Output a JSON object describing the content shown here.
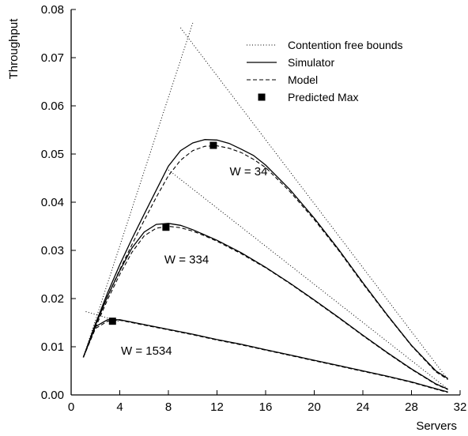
{
  "chart_data": {
    "type": "line",
    "title": "",
    "xlabel": "Servers",
    "ylabel": "Throughput",
    "xlim": [
      0,
      32
    ],
    "ylim": [
      0,
      0.08
    ],
    "xticks": [
      "0",
      "4",
      "8",
      "12",
      "16",
      "20",
      "24",
      "28",
      "32"
    ],
    "yticks": [
      "0.00",
      "0.01",
      "0.02",
      "0.03",
      "0.04",
      "0.05",
      "0.06",
      "0.07",
      "0.08"
    ],
    "grid": false,
    "legend_position": "top-right",
    "legend": [
      {
        "label": "Contention free bounds",
        "style": "dotted"
      },
      {
        "label": "Simulator",
        "style": "solid"
      },
      {
        "label": "Model",
        "style": "dashed"
      },
      {
        "label": "Predicted Max",
        "style": "square"
      }
    ],
    "groups": [
      {
        "annotation": "W = 34",
        "bounds": [
          {
            "x": [
              1,
              10
            ],
            "y": [
              0.0078,
              0.0772
            ]
          },
          {
            "x": [
              9,
              31
            ],
            "y": [
              0.0762,
              0.0032
            ]
          }
        ],
        "simulator": {
          "x": [
            1,
            2,
            3,
            4,
            5,
            6,
            7,
            8,
            9,
            10,
            11,
            12,
            13,
            14,
            15,
            16,
            18,
            20,
            22,
            24,
            26,
            28,
            30,
            31
          ],
          "y": [
            0.0078,
            0.0148,
            0.0212,
            0.027,
            0.0324,
            0.0375,
            0.0425,
            0.0475,
            0.0507,
            0.0523,
            0.053,
            0.0529,
            0.0522,
            0.051,
            0.0497,
            0.0477,
            0.0426,
            0.0367,
            0.0302,
            0.0233,
            0.0166,
            0.0103,
            0.005,
            0.0034
          ]
        },
        "model": {
          "x": [
            1,
            2,
            3,
            4,
            5,
            6,
            7,
            8,
            9,
            10,
            11,
            12,
            13,
            14,
            15,
            16,
            18,
            20,
            22,
            24,
            26,
            28,
            30,
            31
          ],
          "y": [
            0.0078,
            0.0145,
            0.0205,
            0.026,
            0.0312,
            0.0362,
            0.041,
            0.0455,
            0.0487,
            0.0507,
            0.0516,
            0.0517,
            0.0512,
            0.0503,
            0.0489,
            0.0472,
            0.0422,
            0.0364,
            0.03,
            0.0231,
            0.0165,
            0.0102,
            0.0048,
            0.0032
          ]
        },
        "predicted_max": {
          "x": 11.7,
          "y": 0.0518
        }
      },
      {
        "annotation": "W = 334",
        "bounds": [
          {
            "x": [
              8,
              31
            ],
            "y": [
              0.0467,
              0.0012
            ]
          }
        ],
        "simulator": {
          "x": [
            1,
            2,
            3,
            4,
            5,
            6,
            7,
            8,
            9,
            10,
            11,
            12,
            14,
            16,
            18,
            20,
            22,
            24,
            26,
            28,
            30,
            31
          ],
          "y": [
            0.0078,
            0.0145,
            0.0205,
            0.0258,
            0.0305,
            0.0338,
            0.0354,
            0.0356,
            0.0352,
            0.0343,
            0.0332,
            0.0321,
            0.0295,
            0.0265,
            0.0232,
            0.0197,
            0.0161,
            0.0124,
            0.0088,
            0.0054,
            0.0023,
            0.0012
          ]
        },
        "model": {
          "x": [
            1,
            2,
            3,
            4,
            5,
            6,
            7,
            8,
            9,
            10,
            11,
            12,
            14,
            16,
            18,
            20,
            22,
            24,
            26,
            28,
            30,
            31
          ],
          "y": [
            0.0078,
            0.014,
            0.0198,
            0.025,
            0.0296,
            0.033,
            0.0346,
            0.035,
            0.0347,
            0.034,
            0.033,
            0.0319,
            0.0293,
            0.0264,
            0.0231,
            0.0196,
            0.016,
            0.0123,
            0.0087,
            0.0053,
            0.0022,
            0.0011
          ]
        },
        "predicted_max": {
          "x": 7.8,
          "y": 0.0348
        }
      },
      {
        "annotation": "W = 1534",
        "bounds": [
          {
            "x": [
              1.2,
              4
            ],
            "y": [
              0.0173,
              0.0152
            ]
          }
        ],
        "simulator": {
          "x": [
            1,
            2,
            3,
            4,
            6,
            8,
            10,
            12,
            14,
            16,
            18,
            20,
            22,
            24,
            26,
            28,
            30,
            31
          ],
          "y": [
            0.0078,
            0.0142,
            0.0156,
            0.0156,
            0.0146,
            0.0136,
            0.0126,
            0.0115,
            0.0105,
            0.0094,
            0.0083,
            0.0072,
            0.0061,
            0.005,
            0.0039,
            0.0027,
            0.0013,
            0.0006
          ]
        },
        "model": {
          "x": [
            1,
            2,
            3,
            4,
            6,
            8,
            10,
            12,
            14,
            16,
            18,
            20,
            22,
            24,
            26,
            28,
            30,
            31
          ],
          "y": [
            0.0078,
            0.0138,
            0.0153,
            0.0155,
            0.0145,
            0.0135,
            0.0125,
            0.0114,
            0.0104,
            0.0093,
            0.0082,
            0.0071,
            0.006,
            0.0049,
            0.0038,
            0.0026,
            0.0012,
            0.0005
          ]
        },
        "predicted_max": {
          "x": 3.4,
          "y": 0.0153
        }
      }
    ]
  }
}
